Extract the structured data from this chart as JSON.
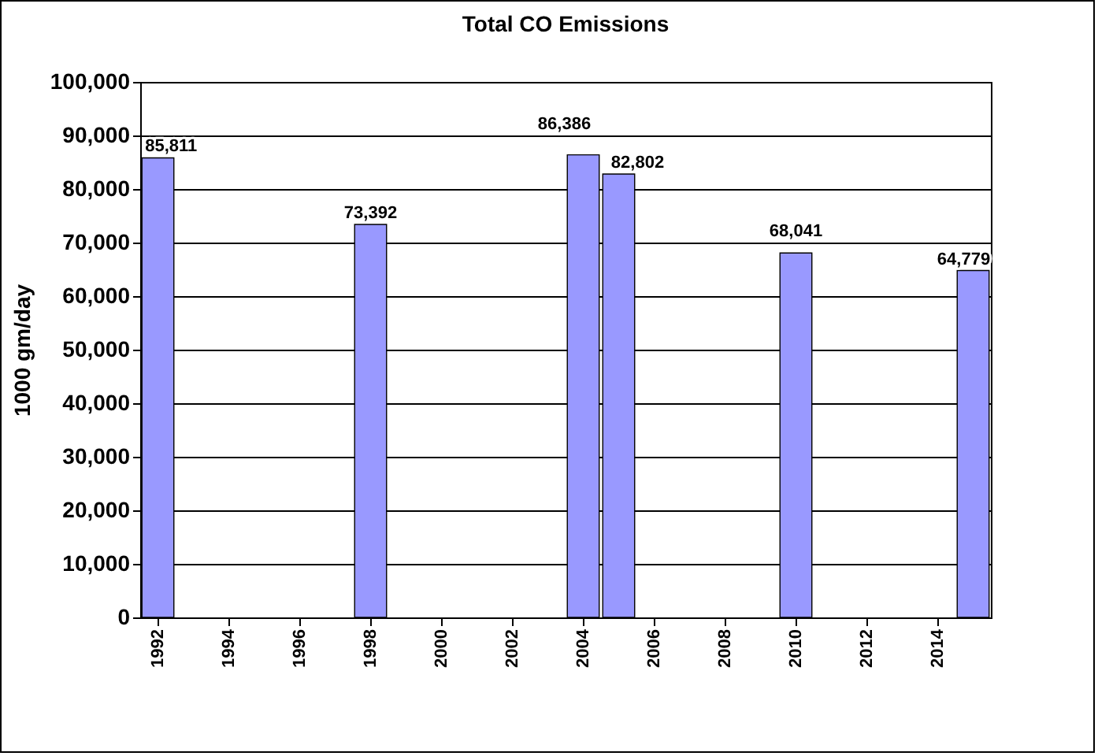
{
  "chart_data": {
    "type": "bar",
    "title": "Total CO Emissions",
    "ylabel": "1000 gm/day",
    "categories": [
      "1992",
      null,
      "1994",
      null,
      "1996",
      null,
      "1998",
      null,
      "2000",
      null,
      "2002",
      null,
      "2004",
      null,
      "2006",
      null,
      "2008",
      null,
      "2010",
      null,
      "2012",
      null,
      "2014",
      null
    ],
    "values": [
      85811,
      null,
      null,
      null,
      null,
      null,
      73392,
      null,
      null,
      null,
      null,
      null,
      86386,
      82802,
      null,
      null,
      null,
      null,
      68041,
      null,
      null,
      null,
      null,
      64779
    ],
    "value_labels": [
      "85,811",
      null,
      null,
      null,
      null,
      null,
      "73,392",
      null,
      null,
      null,
      null,
      null,
      "86,386",
      "82,802",
      null,
      null,
      null,
      null,
      "68,041",
      null,
      null,
      null,
      null,
      "64,779"
    ],
    "color": "#9999ff",
    "ylim": [
      0,
      100000
    ],
    "yticks": [
      0,
      {
        "value": 10000,
        "label": "10,000"
      },
      {
        "value": 20000,
        "label": "20,000"
      },
      {
        "value": 30000,
        "label": "30,000"
      },
      {
        "value": 40000,
        "label": "40,000"
      },
      {
        "value": 50000,
        "label": "50,000"
      },
      {
        "value": 60000,
        "label": "60,000"
      },
      {
        "value": 70000,
        "label": "70,000"
      },
      {
        "value": 80000,
        "label": "80,000"
      },
      {
        "value": 90000,
        "label": "90,000"
      },
      {
        "value": 100000,
        "label": "100,000"
      }
    ],
    "grid": "y",
    "data_labels": true
  }
}
